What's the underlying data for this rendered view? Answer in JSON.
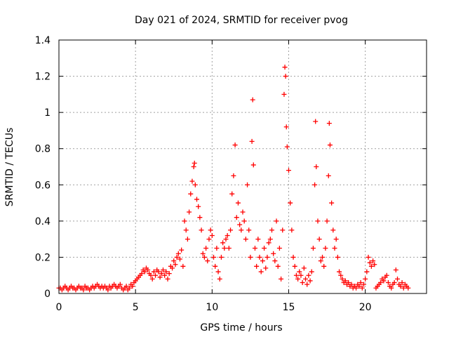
{
  "chart_data": {
    "type": "scatter",
    "title": "Day 021 of 2024, SRMTID for receiver pvog",
    "xlabel": "GPS time / hours",
    "ylabel": "SRMTID / TECUs",
    "xlim": [
      0,
      24
    ],
    "ylim": [
      0,
      1.4
    ],
    "xticks": [
      0,
      5,
      10,
      15,
      20
    ],
    "xtick_labels": [
      "0",
      "5",
      "10",
      "15",
      "20"
    ],
    "yticks": [
      0,
      0.2,
      0.4,
      0.6,
      0.8,
      1.0,
      1.2,
      1.4
    ],
    "ytick_labels": [
      "0",
      "0.2",
      "0.4",
      "0.6",
      "0.8",
      "1",
      "1.2",
      "1.4"
    ],
    "grid": true,
    "marker": "+",
    "color": "#ff0000",
    "series": [
      {
        "name": "SRMTID",
        "points": [
          [
            0.0,
            0.03
          ],
          [
            0.1,
            0.03
          ],
          [
            0.2,
            0.02
          ],
          [
            0.3,
            0.03
          ],
          [
            0.4,
            0.04
          ],
          [
            0.5,
            0.03
          ],
          [
            0.6,
            0.02
          ],
          [
            0.7,
            0.03
          ],
          [
            0.8,
            0.04
          ],
          [
            0.9,
            0.03
          ],
          [
            1.0,
            0.03
          ],
          [
            1.1,
            0.02
          ],
          [
            1.2,
            0.03
          ],
          [
            1.3,
            0.04
          ],
          [
            1.4,
            0.03
          ],
          [
            1.5,
            0.03
          ],
          [
            1.6,
            0.02
          ],
          [
            1.7,
            0.04
          ],
          [
            1.8,
            0.03
          ],
          [
            1.9,
            0.03
          ],
          [
            2.0,
            0.02
          ],
          [
            2.1,
            0.03
          ],
          [
            2.2,
            0.04
          ],
          [
            2.3,
            0.03
          ],
          [
            2.4,
            0.04
          ],
          [
            2.5,
            0.05
          ],
          [
            2.6,
            0.04
          ],
          [
            2.7,
            0.03
          ],
          [
            2.8,
            0.04
          ],
          [
            2.9,
            0.03
          ],
          [
            3.0,
            0.04
          ],
          [
            3.1,
            0.03
          ],
          [
            3.2,
            0.02
          ],
          [
            3.3,
            0.04
          ],
          [
            3.4,
            0.03
          ],
          [
            3.5,
            0.04
          ],
          [
            3.6,
            0.05
          ],
          [
            3.7,
            0.04
          ],
          [
            3.8,
            0.03
          ],
          [
            3.9,
            0.04
          ],
          [
            4.0,
            0.05
          ],
          [
            4.1,
            0.03
          ],
          [
            4.2,
            0.02
          ],
          [
            4.3,
            0.03
          ],
          [
            4.4,
            0.04
          ],
          [
            4.5,
            0.02
          ],
          [
            4.6,
            0.03
          ],
          [
            4.7,
            0.05
          ],
          [
            4.8,
            0.04
          ],
          [
            4.9,
            0.06
          ],
          [
            5.0,
            0.07
          ],
          [
            5.1,
            0.08
          ],
          [
            5.2,
            0.09
          ],
          [
            5.3,
            0.1
          ],
          [
            5.4,
            0.11
          ],
          [
            5.5,
            0.13
          ],
          [
            5.6,
            0.12
          ],
          [
            5.7,
            0.14
          ],
          [
            5.8,
            0.13
          ],
          [
            5.9,
            0.11
          ],
          [
            6.0,
            0.1
          ],
          [
            6.1,
            0.08
          ],
          [
            6.2,
            0.12
          ],
          [
            6.3,
            0.1
          ],
          [
            6.4,
            0.13
          ],
          [
            6.5,
            0.12
          ],
          [
            6.6,
            0.09
          ],
          [
            6.7,
            0.11
          ],
          [
            6.8,
            0.13
          ],
          [
            6.9,
            0.1
          ],
          [
            7.0,
            0.12
          ],
          [
            7.1,
            0.08
          ],
          [
            7.2,
            0.11
          ],
          [
            7.3,
            0.15
          ],
          [
            7.4,
            0.14
          ],
          [
            7.5,
            0.18
          ],
          [
            7.6,
            0.16
          ],
          [
            7.7,
            0.2
          ],
          [
            7.8,
            0.22
          ],
          [
            7.9,
            0.19
          ],
          [
            8.0,
            0.24
          ],
          [
            8.1,
            0.15
          ],
          [
            8.2,
            0.4
          ],
          [
            8.3,
            0.35
          ],
          [
            8.4,
            0.3
          ],
          [
            8.5,
            0.45
          ],
          [
            8.6,
            0.55
          ],
          [
            8.7,
            0.62
          ],
          [
            8.8,
            0.7
          ],
          [
            8.85,
            0.72
          ],
          [
            8.9,
            0.6
          ],
          [
            9.0,
            0.52
          ],
          [
            9.1,
            0.48
          ],
          [
            9.2,
            0.42
          ],
          [
            9.3,
            0.35
          ],
          [
            9.4,
            0.22
          ],
          [
            9.5,
            0.2
          ],
          [
            9.6,
            0.25
          ],
          [
            9.7,
            0.18
          ],
          [
            9.8,
            0.3
          ],
          [
            9.9,
            0.35
          ],
          [
            10.0,
            0.32
          ],
          [
            10.1,
            0.2
          ],
          [
            10.2,
            0.15
          ],
          [
            10.3,
            0.25
          ],
          [
            10.4,
            0.12
          ],
          [
            10.5,
            0.08
          ],
          [
            10.6,
            0.2
          ],
          [
            10.7,
            0.28
          ],
          [
            10.8,
            0.25
          ],
          [
            10.9,
            0.3
          ],
          [
            11.0,
            0.32
          ],
          [
            11.1,
            0.25
          ],
          [
            11.2,
            0.35
          ],
          [
            11.3,
            0.55
          ],
          [
            11.4,
            0.65
          ],
          [
            11.5,
            0.82
          ],
          [
            11.6,
            0.42
          ],
          [
            11.7,
            0.5
          ],
          [
            11.8,
            0.38
          ],
          [
            11.9,
            0.35
          ],
          [
            12.0,
            0.45
          ],
          [
            12.1,
            0.4
          ],
          [
            12.2,
            0.3
          ],
          [
            12.3,
            0.6
          ],
          [
            12.4,
            0.35
          ],
          [
            12.5,
            0.2
          ],
          [
            12.6,
            0.84
          ],
          [
            12.65,
            1.07
          ],
          [
            12.7,
            0.71
          ],
          [
            12.8,
            0.25
          ],
          [
            12.9,
            0.15
          ],
          [
            13.0,
            0.3
          ],
          [
            13.1,
            0.2
          ],
          [
            13.2,
            0.12
          ],
          [
            13.3,
            0.18
          ],
          [
            13.4,
            0.25
          ],
          [
            13.5,
            0.14
          ],
          [
            13.6,
            0.2
          ],
          [
            13.7,
            0.28
          ],
          [
            13.8,
            0.3
          ],
          [
            13.9,
            0.35
          ],
          [
            14.0,
            0.22
          ],
          [
            14.1,
            0.18
          ],
          [
            14.2,
            0.4
          ],
          [
            14.3,
            0.15
          ],
          [
            14.4,
            0.25
          ],
          [
            14.5,
            0.08
          ],
          [
            14.6,
            0.35
          ],
          [
            14.7,
            1.1
          ],
          [
            14.75,
            1.25
          ],
          [
            14.8,
            1.2
          ],
          [
            14.85,
            0.92
          ],
          [
            14.9,
            0.81
          ],
          [
            15.0,
            0.68
          ],
          [
            15.1,
            0.5
          ],
          [
            15.2,
            0.35
          ],
          [
            15.3,
            0.2
          ],
          [
            15.4,
            0.15
          ],
          [
            15.5,
            0.1
          ],
          [
            15.6,
            0.08
          ],
          [
            15.7,
            0.12
          ],
          [
            15.8,
            0.1
          ],
          [
            15.9,
            0.06
          ],
          [
            16.0,
            0.14
          ],
          [
            16.1,
            0.08
          ],
          [
            16.2,
            0.05
          ],
          [
            16.3,
            0.1
          ],
          [
            16.4,
            0.07
          ],
          [
            16.5,
            0.12
          ],
          [
            16.6,
            0.25
          ],
          [
            16.7,
            0.6
          ],
          [
            16.75,
            0.95
          ],
          [
            16.8,
            0.7
          ],
          [
            16.9,
            0.4
          ],
          [
            17.0,
            0.3
          ],
          [
            17.1,
            0.18
          ],
          [
            17.2,
            0.2
          ],
          [
            17.3,
            0.15
          ],
          [
            17.4,
            0.25
          ],
          [
            17.5,
            0.4
          ],
          [
            17.6,
            0.65
          ],
          [
            17.65,
            0.94
          ],
          [
            17.7,
            0.82
          ],
          [
            17.8,
            0.5
          ],
          [
            17.9,
            0.35
          ],
          [
            18.0,
            0.25
          ],
          [
            18.1,
            0.3
          ],
          [
            18.2,
            0.2
          ],
          [
            18.3,
            0.12
          ],
          [
            18.4,
            0.1
          ],
          [
            18.5,
            0.08
          ],
          [
            18.6,
            0.06
          ],
          [
            18.7,
            0.07
          ],
          [
            18.8,
            0.05
          ],
          [
            18.9,
            0.06
          ],
          [
            19.0,
            0.04
          ],
          [
            19.1,
            0.05
          ],
          [
            19.2,
            0.03
          ],
          [
            19.3,
            0.04
          ],
          [
            19.4,
            0.03
          ],
          [
            19.5,
            0.05
          ],
          [
            19.6,
            0.04
          ],
          [
            19.7,
            0.06
          ],
          [
            19.8,
            0.03
          ],
          [
            19.9,
            0.05
          ],
          [
            20.0,
            0.08
          ],
          [
            20.1,
            0.12
          ],
          [
            20.2,
            0.2
          ],
          [
            20.3,
            0.17
          ],
          [
            20.4,
            0.15
          ],
          [
            20.5,
            0.18
          ],
          [
            20.6,
            0.16
          ],
          [
            20.7,
            0.03
          ],
          [
            20.8,
            0.04
          ],
          [
            20.9,
            0.05
          ],
          [
            21.0,
            0.06
          ],
          [
            21.1,
            0.08
          ],
          [
            21.2,
            0.07
          ],
          [
            21.3,
            0.09
          ],
          [
            21.4,
            0.1
          ],
          [
            21.5,
            0.06
          ],
          [
            21.6,
            0.04
          ],
          [
            21.7,
            0.03
          ],
          [
            21.8,
            0.05
          ],
          [
            21.9,
            0.06
          ],
          [
            22.0,
            0.13
          ],
          [
            22.1,
            0.08
          ],
          [
            22.2,
            0.05
          ],
          [
            22.3,
            0.04
          ],
          [
            22.4,
            0.06
          ],
          [
            22.5,
            0.03
          ],
          [
            22.6,
            0.05
          ],
          [
            22.7,
            0.04
          ],
          [
            22.8,
            0.03
          ]
        ]
      }
    ]
  }
}
